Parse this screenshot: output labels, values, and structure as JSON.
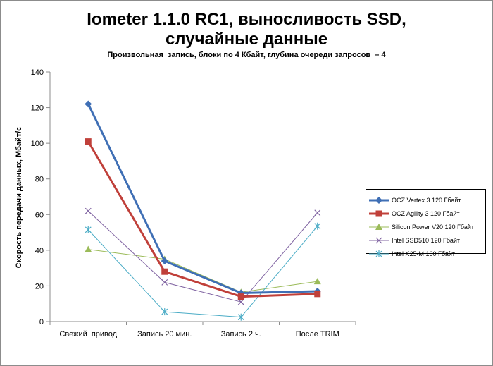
{
  "chart_data": {
    "type": "line",
    "title_line1": "Iometer 1.1.0 RC1, выносливость SSD,",
    "title_line2": "случайные данные",
    "subtitle": "Произвольная  запись, блоки по 4 Кбайт, глубина очереди запросов  – 4",
    "xlabel": "",
    "ylabel": "Скорость  передачи данных, Мбайт/с",
    "categories": [
      "Свежий  привод",
      "Запись 20 мин.",
      "Запись 2 ч.",
      "После TRIM"
    ],
    "ylim": [
      0,
      140
    ],
    "yticks": [
      "0",
      "20",
      "40",
      "60",
      "80",
      "100",
      "120",
      "140"
    ],
    "grid": false,
    "legend_position": "right",
    "series": [
      {
        "name": "OCZ Vertex 3 120 Гбайт",
        "values": [
          122,
          34,
          16,
          17
        ],
        "color": "#3f6fb5",
        "marker": "diamond",
        "width": "thick"
      },
      {
        "name": "OCZ Agility 3 120 Гбайт",
        "values": [
          101,
          28,
          14,
          15.5
        ],
        "color": "#c0403a",
        "marker": "square",
        "width": "thick"
      },
      {
        "name": "Silicon Power V20 120 Гбайт",
        "values": [
          40.5,
          35,
          16.5,
          22.5
        ],
        "color": "#9bbb59",
        "marker": "triangle",
        "width": "thin"
      },
      {
        "name": "Intel SSD510 120 Гбайт",
        "values": [
          62,
          22,
          11,
          61
        ],
        "color": "#8064a2",
        "marker": "x",
        "width": "thin"
      },
      {
        "name": "Intel X25-M 160 Гбайт",
        "values": [
          51.5,
          5.5,
          2.5,
          53.5
        ],
        "color": "#4bacc6",
        "marker": "star",
        "width": "thin"
      }
    ]
  }
}
